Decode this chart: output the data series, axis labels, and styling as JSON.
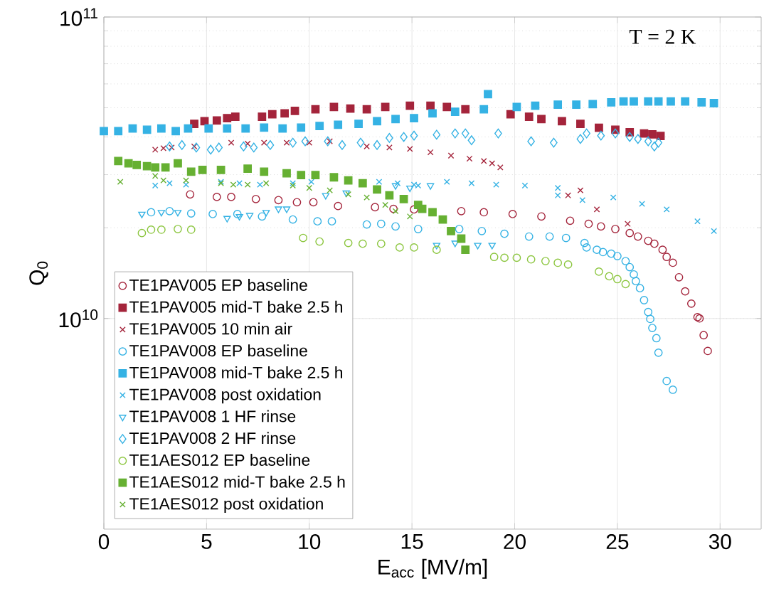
{
  "chart_data": {
    "type": "scatter",
    "xlabel": "E$_{acc}$ [MV/m]",
    "ylabel": "Q$_{0}$",
    "annotations": [
      "T = 2 K"
    ],
    "xlim": [
      0,
      32
    ],
    "ylim": [
      2000000000.0,
      100000000000.0
    ],
    "xticks": [
      0,
      5,
      10,
      15,
      20,
      25,
      30
    ],
    "yticks": [
      {
        "value": 10000000000.0,
        "label": "10$^{10}$"
      },
      {
        "value": 100000000000.0,
        "label": "10$^{11}$"
      }
    ],
    "log": "y",
    "grid": true,
    "legend": "bottom left",
    "series": [
      {
        "name": "TE1PAV005 EP baseline",
        "color": "#a4243b",
        "marker": "circle",
        "x": [
          4.2,
          5.5,
          6.2,
          7.4,
          8.5,
          9.4,
          10.2,
          11.4,
          13.2,
          14.1,
          15.1,
          17.4,
          18.5,
          19.9,
          21.3,
          22.7,
          23.6,
          24.2,
          24.9,
          25.6,
          26.0,
          26.5,
          26.8,
          27.2,
          27.4,
          27.7,
          28.0,
          28.3,
          28.6,
          28.9,
          29.0,
          29.2,
          29.4
        ],
        "values": [
          25800000000.0,
          25300000000.0,
          25300000000.0,
          24900000000.0,
          24700000000.0,
          24300000000.0,
          24300000000.0,
          23600000000.0,
          23400000000.0,
          23100000000.0,
          23000000000.0,
          22700000000.0,
          22500000000.0,
          22200000000.0,
          21800000000.0,
          21100000000.0,
          20600000000.0,
          20200000000.0,
          19800000000.0,
          19200000000.0,
          18700000000.0,
          18100000000.0,
          17700000000.0,
          16900000000.0,
          16000000000.0,
          15300000000.0,
          13700000000.0,
          12300000000.0,
          11200000000.0,
          10100000000.0,
          10000000000.0,
          8800000000.0,
          7800000000.0
        ]
      },
      {
        "name": "TE1PAV005 mid-T bake 2.5 h",
        "color": "#a4243b",
        "marker": "square",
        "x": [
          4.4,
          4.9,
          5.5,
          6.0,
          6.4,
          7.7,
          8.2,
          8.8,
          9.3,
          10.3,
          11.2,
          12.0,
          12.8,
          13.7,
          14.9,
          15.9,
          16.7,
          17.6,
          18.5,
          19.8,
          20.7,
          21.3,
          22.3,
          23.2,
          24.1,
          24.9,
          25.6,
          26.3,
          26.7,
          27.1
        ],
        "values": [
          44200000000.0,
          45100000000.0,
          45400000000.0,
          46200000000.0,
          46700000000.0,
          46700000000.0,
          47600000000.0,
          47900000000.0,
          48800000000.0,
          49400000000.0,
          50300000000.0,
          49700000000.0,
          49400000000.0,
          50300000000.0,
          50800000000.0,
          50800000000.0,
          50300000000.0,
          49400000000.0,
          null,
          47600000000.0,
          46700000000.0,
          45900000000.0,
          45100000000.0,
          44200000000.0,
          42900000000.0,
          42300000000.0,
          41500000000.0,
          41100000000.0,
          40800000000.0,
          40300000000.0
        ]
      },
      {
        "name": "TE1PAV005 10 min air",
        "color": "#a4243b",
        "marker": "cross",
        "x": [
          2.5,
          2.9,
          3.3,
          4.4,
          6.2,
          7.0,
          7.8,
          8.9,
          10.0,
          11.0,
          12.8,
          13.9,
          14.9,
          15.9,
          16.9,
          17.8,
          18.5,
          18.9,
          19.3,
          22.6,
          23.2,
          24.0,
          25.5
        ],
        "values": [
          36300000000.0,
          36700000000.0,
          36900000000.0,
          37200000000.0,
          38300000000.0,
          38000000000.0,
          38300000000.0,
          38300000000.0,
          38300000000.0,
          38700000000.0,
          37200000000.0,
          36900000000.0,
          36500000000.0,
          35600000000.0,
          34700000000.0,
          33900000000.0,
          33300000000.0,
          32700000000.0,
          31700000000.0,
          25600000000.0,
          26600000000.0,
          23000000000.0,
          20600000000.0
        ]
      },
      {
        "name": "TE1PAV008 EP baseline",
        "color": "#35b2e4",
        "marker": "circle",
        "x": [
          2.3,
          3.2,
          4.25,
          5.3,
          6.5,
          7.7,
          9.2,
          10.4,
          11.1,
          12.8,
          13.5,
          14.2,
          15.3,
          17.3,
          18.4,
          19.5,
          20.7,
          21.7,
          22.5,
          23.4,
          23.5,
          24.0,
          24.3,
          24.7,
          25.0,
          25.4,
          25.6,
          25.8,
          25.9,
          26.1,
          26.3,
          26.5,
          26.6,
          26.7,
          26.9,
          27.0,
          27.4,
          27.7
        ],
        "values": [
          22500000000.0,
          22700000000.0,
          22300000000.0,
          22200000000.0,
          22200000000.0,
          21800000000.0,
          21300000000.0,
          21000000000.0,
          21000000000.0,
          20500000000.0,
          20600000000.0,
          20200000000.0,
          19800000000.0,
          19800000000.0,
          19500000000.0,
          19100000000.0,
          18700000000.0,
          18700000000.0,
          18500000000.0,
          17800000000.0,
          17200000000.0,
          16900000000.0,
          16600000000.0,
          16400000000.0,
          16100000000.0,
          15500000000.0,
          14800000000.0,
          14000000000.0,
          13300000000.0,
          12600000000.0,
          11500000000.0,
          10500000000.0,
          9960000000.0,
          9300000000.0,
          8600000000.0,
          7700000000.0,
          6200000000.0,
          5800000000.0
        ]
      },
      {
        "name": "TE1PAV008 mid-T bake 2.5 h",
        "color": "#35b2e4",
        "marker": "square",
        "x": [
          0.0,
          0.7,
          1.4,
          2.1,
          2.8,
          3.5,
          4.1,
          5.1,
          6.0,
          6.9,
          7.8,
          8.7,
          9.6,
          10.5,
          11.4,
          12.4,
          13.3,
          14.2,
          15.1,
          16.0,
          17.1,
          18.5,
          18.7,
          20.1,
          21.0,
          22.1,
          23.0,
          23.8,
          24.7,
          25.3,
          25.8,
          26.5,
          27.0,
          27.6,
          28.3,
          29.1,
          29.7
        ],
        "values": [
          41800000000.0,
          41800000000.0,
          42700000000.0,
          42300000000.0,
          42700000000.0,
          41800000000.0,
          42700000000.0,
          42700000000.0,
          42700000000.0,
          42700000000.0,
          43000000000.0,
          42700000000.0,
          43000000000.0,
          43500000000.0,
          43900000000.0,
          44200000000.0,
          45100000000.0,
          45900000000.0,
          46200000000.0,
          47900000000.0,
          48500000000.0,
          49400000000.0,
          55500000000.0,
          50300000000.0,
          50800000000.0,
          51200000000.0,
          51200000000.0,
          51400000000.0,
          52100000000.0,
          52500000000.0,
          52500000000.0,
          52500000000.0,
          52500000000.0,
          52500000000.0,
          52500000000.0,
          52100000000.0,
          51800000000.0
        ]
      },
      {
        "name": "TE1PAV008 post oxidation",
        "color": "#35b2e4",
        "marker": "cross",
        "x": [
          2.5,
          3.2,
          4.0,
          5.7,
          6.6,
          7.6,
          9.2,
          10.1,
          11.1,
          12.4,
          13.4,
          14.3,
          15.1,
          15.3,
          16.7,
          17.9,
          19.1,
          20.5,
          22.1,
          22.1,
          23.3,
          24.8,
          26.2,
          27.4,
          28.9,
          29.7
        ],
        "values": [
          27600000000.0,
          28100000000.0,
          27800000000.0,
          28400000000.0,
          28100000000.0,
          27800000000.0,
          28100000000.0,
          28400000000.0,
          null,
          null,
          28400000000.0,
          28100000000.0,
          27800000000.0,
          27600000000.0,
          28400000000.0,
          28100000000.0,
          27800000000.0,
          27600000000.0,
          27100000000.0,
          25600000000.0,
          24700000000.0,
          25200000000.0,
          24000000000.0,
          23000000000.0,
          21000000000.0,
          19500000000.0
        ]
      },
      {
        "name": "TE1PAV008 1 HF rinse",
        "color": "#35b2e4",
        "marker": "triangle",
        "x": [
          1.85,
          2.8,
          3.6,
          6.0,
          6.6,
          7.1,
          7.9,
          8.5,
          8.9,
          10.8,
          11.8,
          14.2,
          14.9,
          15.3,
          15.9,
          16.2,
          17.1,
          18.2,
          18.9
        ],
        "values": [
          22200000000.0,
          22500000000.0,
          22500000000.0,
          21500000000.0,
          21800000000.0,
          22000000000.0,
          22500000000.0,
          23100000000.0,
          23100000000.0,
          25600000000.0,
          26100000000.0,
          27600000000.0,
          27100000000.0,
          null,
          27600000000.0,
          17500000000.0,
          17800000000.0,
          17500000000.0,
          17500000000.0
        ]
      },
      {
        "name": "TE1PAV008 2 HF rinse",
        "color": "#35b2e4",
        "marker": "diamond",
        "x": [
          3.2,
          3.8,
          4.5,
          5.2,
          5.6,
          6.8,
          7.3,
          8.1,
          9.2,
          9.8,
          10.9,
          11.6,
          12.5,
          13.3,
          13.9,
          14.6,
          15.1,
          16.2,
          17.1,
          17.6,
          17.9,
          19.2,
          20.8,
          21.9,
          23.2,
          23.5,
          24.2,
          24.9,
          25.6,
          26.0,
          26.5,
          26.8,
          27.0
        ],
        "values": [
          37200000000.0,
          37600000000.0,
          36900000000.0,
          36300000000.0,
          36900000000.0,
          37200000000.0,
          36900000000.0,
          37600000000.0,
          38300000000.0,
          38700000000.0,
          38700000000.0,
          37600000000.0,
          38300000000.0,
          37600000000.0,
          39700000000.0,
          40000000000.0,
          40400000000.0,
          40700000000.0,
          41100000000.0,
          41100000000.0,
          39000000000.0,
          41100000000.0,
          38700000000.0,
          38300000000.0,
          39400000000.0,
          41100000000.0,
          40400000000.0,
          41100000000.0,
          40000000000.0,
          39400000000.0,
          38700000000.0,
          37200000000.0,
          38300000000.0
        ]
      },
      {
        "name": "TE1AES012 EP baseline",
        "color": "#8cc63f",
        "marker": "circle",
        "x": [
          1.85,
          2.3,
          2.8,
          3.6,
          4.25,
          9.7,
          10.5,
          11.9,
          12.6,
          13.5,
          14.4,
          15.1,
          16.2,
          19.0,
          19.5,
          20.1,
          20.8,
          21.5,
          22.1,
          22.6,
          24.1,
          24.6,
          25.0,
          25.4
        ],
        "values": [
          19200000000.0,
          19700000000.0,
          19700000000.0,
          19800000000.0,
          19700000000.0,
          18500000000.0,
          18000000000.0,
          17800000000.0,
          17700000000.0,
          17700000000.0,
          17200000000.0,
          17200000000.0,
          16900000000.0,
          16000000000.0,
          15900000000.0,
          15900000000.0,
          15700000000.0,
          15500000000.0,
          15300000000.0,
          15100000000.0,
          14300000000.0,
          13800000000.0,
          13500000000.0,
          13000000000.0
        ]
      },
      {
        "name": "TE1AES012 mid-T bake 2.5 h",
        "color": "#66b032",
        "marker": "square",
        "x": [
          0.7,
          1.2,
          1.6,
          2.1,
          2.5,
          3.0,
          3.6,
          4.25,
          4.8,
          5.7,
          7.0,
          7.8,
          8.9,
          9.6,
          10.3,
          11.2,
          11.9,
          12.6,
          13.3,
          13.9,
          14.6,
          15.3,
          15.5,
          16.0,
          16.5,
          16.9,
          17.4,
          17.6
        ],
        "values": [
          33300000000.0,
          32700000000.0,
          32300000000.0,
          32000000000.0,
          31700000000.0,
          31700000000.0,
          32700000000.0,
          30700000000.0,
          31100000000.0,
          31100000000.0,
          31400000000.0,
          30700000000.0,
          30300000000.0,
          29900000000.0,
          29900000000.0,
          29400000000.0,
          28700000000.0,
          28100000000.0,
          26800000000.0,
          25600000000.0,
          24900000000.0,
          23800000000.0,
          23100000000.0,
          22500000000.0,
          21300000000.0,
          19500000000.0,
          18400000000.0,
          16900000000.0
        ]
      },
      {
        "name": "TE1AES012 post oxidation",
        "color": "#66b032",
        "marker": "cross",
        "x": [
          0.8,
          2.5,
          2.9,
          4.0,
          5.7,
          6.3,
          7.0,
          7.9,
          9.2,
          10.0,
          11.0,
          11.9,
          12.8,
          13.7,
          14.2,
          14.9
        ],
        "values": [
          28400000000.0,
          29700000000.0,
          28700000000.0,
          28700000000.0,
          28100000000.0,
          27800000000.0,
          27800000000.0,
          28100000000.0,
          27600000000.0,
          27100000000.0,
          26600000000.0,
          25800000000.0,
          25200000000.0,
          23800000000.0,
          22700000000.0,
          21800000000.0
        ]
      }
    ]
  }
}
